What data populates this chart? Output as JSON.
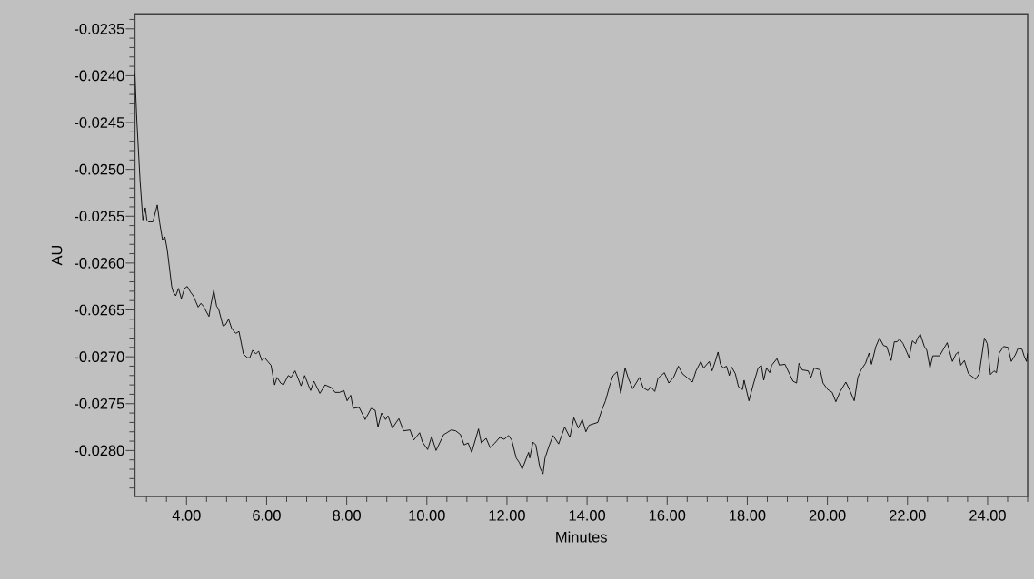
{
  "chart_data": {
    "type": "line",
    "xlabel": "Minutes",
    "ylabel": "AU",
    "color": "#000000",
    "marker": "none",
    "line_style": "solid",
    "xlim": [
      2.71,
      25.0
    ],
    "ylim": [
      -0.02849,
      -0.02334
    ],
    "xticks": [
      {
        "value": 3,
        "label": null
      },
      {
        "value": 3.5,
        "label": null
      },
      {
        "value": 4,
        "label": "4.00"
      },
      {
        "value": 4.5,
        "label": null
      },
      {
        "value": 5,
        "label": null
      },
      {
        "value": 5.5,
        "label": null
      },
      {
        "value": 6,
        "label": "6.00"
      },
      {
        "value": 6.5,
        "label": null
      },
      {
        "value": 7,
        "label": null
      },
      {
        "value": 7.5,
        "label": null
      },
      {
        "value": 8,
        "label": "8.00"
      },
      {
        "value": 8.5,
        "label": null
      },
      {
        "value": 9,
        "label": null
      },
      {
        "value": 9.5,
        "label": null
      },
      {
        "value": 10,
        "label": "10.00"
      },
      {
        "value": 10.5,
        "label": null
      },
      {
        "value": 11,
        "label": null
      },
      {
        "value": 11.5,
        "label": null
      },
      {
        "value": 12,
        "label": "12.00"
      },
      {
        "value": 12.5,
        "label": null
      },
      {
        "value": 13,
        "label": null
      },
      {
        "value": 13.5,
        "label": null
      },
      {
        "value": 14,
        "label": "14.00"
      },
      {
        "value": 14.5,
        "label": null
      },
      {
        "value": 15,
        "label": null
      },
      {
        "value": 15.5,
        "label": null
      },
      {
        "value": 16,
        "label": "16.00"
      },
      {
        "value": 16.5,
        "label": null
      },
      {
        "value": 17,
        "label": null
      },
      {
        "value": 17.5,
        "label": null
      },
      {
        "value": 18,
        "label": "18.00"
      },
      {
        "value": 18.5,
        "label": null
      },
      {
        "value": 19,
        "label": null
      },
      {
        "value": 19.5,
        "label": null
      },
      {
        "value": 20,
        "label": "20.00"
      },
      {
        "value": 20.5,
        "label": null
      },
      {
        "value": 21,
        "label": null
      },
      {
        "value": 21.5,
        "label": null
      },
      {
        "value": 22,
        "label": "22.00"
      },
      {
        "value": 22.5,
        "label": null
      },
      {
        "value": 23,
        "label": null
      },
      {
        "value": 23.5,
        "label": null
      },
      {
        "value": 24,
        "label": "24.00"
      },
      {
        "value": 24.5,
        "label": null
      },
      {
        "value": 25,
        "label": null
      }
    ],
    "yticks": [
      {
        "value": -0.0284,
        "label": null
      },
      {
        "value": -0.0283,
        "label": null
      },
      {
        "value": -0.0282,
        "label": null
      },
      {
        "value": -0.0281,
        "label": null
      },
      {
        "value": -0.028,
        "label": "-0.0280"
      },
      {
        "value": -0.0279,
        "label": null
      },
      {
        "value": -0.0278,
        "label": null
      },
      {
        "value": -0.0277,
        "label": null
      },
      {
        "value": -0.0276,
        "label": null
      },
      {
        "value": -0.0275,
        "label": "-0.0275"
      },
      {
        "value": -0.0274,
        "label": null
      },
      {
        "value": -0.0273,
        "label": null
      },
      {
        "value": -0.0272,
        "label": null
      },
      {
        "value": -0.0271,
        "label": null
      },
      {
        "value": -0.027,
        "label": "-0.0270"
      },
      {
        "value": -0.0269,
        "label": null
      },
      {
        "value": -0.0268,
        "label": null
      },
      {
        "value": -0.0267,
        "label": null
      },
      {
        "value": -0.0266,
        "label": null
      },
      {
        "value": -0.0265,
        "label": "-0.0265"
      },
      {
        "value": -0.0264,
        "label": null
      },
      {
        "value": -0.0263,
        "label": null
      },
      {
        "value": -0.0262,
        "label": null
      },
      {
        "value": -0.0261,
        "label": null
      },
      {
        "value": -0.026,
        "label": "-0.0260"
      },
      {
        "value": -0.0259,
        "label": null
      },
      {
        "value": -0.0258,
        "label": null
      },
      {
        "value": -0.0257,
        "label": null
      },
      {
        "value": -0.0256,
        "label": null
      },
      {
        "value": -0.0255,
        "label": "-0.0255"
      },
      {
        "value": -0.0254,
        "label": null
      },
      {
        "value": -0.0253,
        "label": null
      },
      {
        "value": -0.0252,
        "label": null
      },
      {
        "value": -0.0251,
        "label": null
      },
      {
        "value": -0.025,
        "label": "-0.0250"
      },
      {
        "value": -0.0249,
        "label": null
      },
      {
        "value": -0.0248,
        "label": null
      },
      {
        "value": -0.0247,
        "label": null
      },
      {
        "value": -0.0246,
        "label": null
      },
      {
        "value": -0.0245,
        "label": "-0.0245"
      },
      {
        "value": -0.0244,
        "label": null
      },
      {
        "value": -0.0243,
        "label": null
      },
      {
        "value": -0.0242,
        "label": null
      },
      {
        "value": -0.0241,
        "label": null
      },
      {
        "value": -0.024,
        "label": "-0.0240"
      },
      {
        "value": -0.0239,
        "label": null
      },
      {
        "value": -0.0238,
        "label": null
      },
      {
        "value": -0.0237,
        "label": null
      },
      {
        "value": -0.0236,
        "label": null
      },
      {
        "value": -0.0235,
        "label": "-0.0235"
      },
      {
        "value": -0.0234,
        "label": null
      }
    ],
    "x": [
      2.71,
      2.76,
      2.84,
      2.91,
      2.97,
      3.01,
      3.05,
      3.16,
      3.27,
      3.33,
      3.4,
      3.46,
      3.52,
      3.63,
      3.67,
      3.73,
      3.8,
      3.87,
      3.95,
      4.02,
      4.1,
      4.17,
      4.23,
      4.29,
      4.36,
      4.42,
      4.56,
      4.61,
      4.68,
      4.75,
      4.8,
      4.91,
      4.97,
      5.05,
      5.13,
      5.23,
      5.31,
      5.42,
      5.52,
      5.58,
      5.65,
      5.73,
      5.8,
      5.88,
      5.95,
      6.03,
      6.11,
      6.2,
      6.26,
      6.35,
      6.42,
      6.54,
      6.61,
      6.71,
      6.86,
      6.95,
      7.04,
      7.1,
      7.18,
      7.33,
      7.46,
      7.62,
      7.71,
      7.82,
      7.93,
      8.01,
      8.1,
      8.16,
      8.31,
      8.46,
      8.61,
      8.71,
      8.78,
      8.87,
      8.97,
      9.03,
      9.14,
      9.3,
      9.42,
      9.58,
      9.67,
      9.82,
      9.89,
      10.02,
      10.12,
      10.23,
      10.42,
      10.5,
      10.61,
      10.72,
      10.84,
      10.93,
      11.03,
      11.12,
      11.29,
      11.36,
      11.48,
      11.58,
      11.7,
      11.82,
      11.93,
      12.04,
      12.12,
      12.23,
      12.31,
      12.38,
      12.54,
      12.57,
      12.65,
      12.72,
      12.82,
      12.9,
      12.95,
      13.06,
      13.15,
      13.29,
      13.44,
      13.57,
      13.67,
      13.78,
      13.88,
      13.97,
      14.05,
      14.27,
      14.35,
      14.46,
      14.57,
      14.65,
      14.75,
      14.84,
      14.95,
      15.03,
      15.14,
      15.31,
      15.4,
      15.52,
      15.59,
      15.69,
      15.77,
      15.93,
      16.04,
      16.16,
      16.28,
      16.38,
      16.63,
      16.72,
      16.84,
      16.91,
      17.05,
      17.12,
      17.2,
      17.27,
      17.33,
      17.4,
      17.48,
      17.55,
      17.61,
      17.7,
      17.78,
      17.88,
      17.92,
      18.04,
      18.16,
      18.27,
      18.35,
      18.41,
      18.48,
      18.56,
      18.61,
      18.74,
      18.8,
      18.94,
      19.14,
      19.23,
      19.29,
      19.37,
      19.52,
      19.59,
      19.67,
      19.82,
      19.89,
      20.01,
      20.12,
      20.21,
      20.32,
      20.46,
      20.55,
      20.67,
      20.76,
      20.84,
      20.95,
      21.04,
      21.1,
      21.21,
      21.3,
      21.4,
      21.48,
      21.59,
      21.67,
      21.74,
      21.8,
      21.89,
      22.04,
      22.12,
      22.2,
      22.25,
      22.32,
      22.42,
      22.48,
      22.56,
      22.63,
      22.8,
      22.99,
      23.12,
      23.21,
      23.27,
      23.33,
      23.42,
      23.52,
      23.7,
      23.79,
      23.92,
      23.99,
      24.07,
      24.16,
      24.22,
      24.29,
      24.4,
      24.51,
      24.59,
      24.69,
      24.76,
      24.86,
      24.91,
      24.97,
      25.0
    ],
    "values": [
      -0.02397,
      -0.02448,
      -0.02512,
      -0.02554,
      -0.02541,
      -0.02554,
      -0.02556,
      -0.02556,
      -0.02538,
      -0.02557,
      -0.02575,
      -0.02572,
      -0.02586,
      -0.02625,
      -0.02631,
      -0.02635,
      -0.02627,
      -0.02638,
      -0.02627,
      -0.02625,
      -0.02631,
      -0.02635,
      -0.02641,
      -0.02647,
      -0.02643,
      -0.02646,
      -0.02657,
      -0.02644,
      -0.02629,
      -0.02646,
      -0.02649,
      -0.02667,
      -0.02666,
      -0.0266,
      -0.0267,
      -0.02675,
      -0.02673,
      -0.02697,
      -0.02701,
      -0.02701,
      -0.02693,
      -0.02697,
      -0.02694,
      -0.02704,
      -0.02701,
      -0.02705,
      -0.02709,
      -0.0273,
      -0.02722,
      -0.02728,
      -0.0273,
      -0.0272,
      -0.02722,
      -0.02715,
      -0.02731,
      -0.0272,
      -0.0273,
      -0.02736,
      -0.02726,
      -0.02739,
      -0.0273,
      -0.02733,
      -0.02738,
      -0.02738,
      -0.02736,
      -0.02747,
      -0.02741,
      -0.02755,
      -0.02754,
      -0.02767,
      -0.02755,
      -0.02757,
      -0.02775,
      -0.0276,
      -0.02767,
      -0.02763,
      -0.02776,
      -0.02766,
      -0.02779,
      -0.02778,
      -0.02789,
      -0.02781,
      -0.02791,
      -0.02799,
      -0.02785,
      -0.028,
      -0.02783,
      -0.02781,
      -0.02778,
      -0.02779,
      -0.02783,
      -0.02794,
      -0.02792,
      -0.02802,
      -0.02777,
      -0.02792,
      -0.02787,
      -0.02797,
      -0.02792,
      -0.02786,
      -0.02788,
      -0.02784,
      -0.02789,
      -0.02808,
      -0.02813,
      -0.0282,
      -0.02802,
      -0.02808,
      -0.02791,
      -0.02794,
      -0.02818,
      -0.02825,
      -0.02808,
      -0.02794,
      -0.02784,
      -0.02793,
      -0.02775,
      -0.02786,
      -0.02765,
      -0.02776,
      -0.02767,
      -0.0278,
      -0.02773,
      -0.0277,
      -0.02759,
      -0.02747,
      -0.0273,
      -0.0272,
      -0.02716,
      -0.02739,
      -0.02712,
      -0.02723,
      -0.02734,
      -0.02722,
      -0.02733,
      -0.02736,
      -0.02732,
      -0.02737,
      -0.02723,
      -0.02717,
      -0.02728,
      -0.02722,
      -0.0271,
      -0.02718,
      -0.02727,
      -0.02715,
      -0.02705,
      -0.02712,
      -0.02705,
      -0.02715,
      -0.02705,
      -0.02695,
      -0.02708,
      -0.02712,
      -0.0271,
      -0.0272,
      -0.02711,
      -0.02718,
      -0.02732,
      -0.02735,
      -0.02725,
      -0.02747,
      -0.02728,
      -0.02712,
      -0.02709,
      -0.02725,
      -0.02712,
      -0.02717,
      -0.02709,
      -0.02702,
      -0.02709,
      -0.02708,
      -0.02726,
      -0.02728,
      -0.02707,
      -0.02714,
      -0.02715,
      -0.02722,
      -0.02712,
      -0.02714,
      -0.02728,
      -0.02735,
      -0.02738,
      -0.02748,
      -0.02737,
      -0.02727,
      -0.02735,
      -0.02747,
      -0.02722,
      -0.02714,
      -0.02707,
      -0.02696,
      -0.02708,
      -0.02689,
      -0.0268,
      -0.02688,
      -0.02689,
      -0.02704,
      -0.02684,
      -0.02684,
      -0.02681,
      -0.02686,
      -0.02701,
      -0.02683,
      -0.02686,
      -0.0268,
      -0.02676,
      -0.02689,
      -0.02693,
      -0.02712,
      -0.02699,
      -0.02699,
      -0.02685,
      -0.02705,
      -0.02697,
      -0.02695,
      -0.02709,
      -0.02704,
      -0.02718,
      -0.02724,
      -0.02718,
      -0.0268,
      -0.02686,
      -0.02719,
      -0.02715,
      -0.02717,
      -0.02696,
      -0.02689,
      -0.0269,
      -0.02705,
      -0.02698,
      -0.02691,
      -0.02692,
      -0.02699,
      -0.02705,
      -0.02696
    ]
  }
}
